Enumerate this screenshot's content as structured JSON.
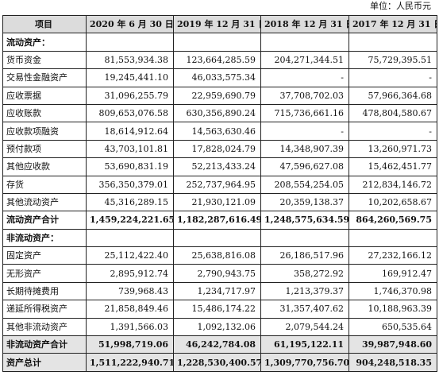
{
  "unit_label": "单位：人民币元",
  "headers": [
    "项目",
    "2020 年 6 月 30 日",
    "2019 年 12 月 31 日",
    "2018 年 12 月 31 日",
    "2017 年 12 月 31 日"
  ],
  "rows": [
    {
      "kind": "section",
      "label": "流动资产：",
      "values": [
        "",
        "",
        "",
        ""
      ]
    },
    {
      "kind": "item",
      "label": "货币资金",
      "values": [
        "81,553,934.38",
        "123,664,285.59",
        "204,271,344.51",
        "75,729,395.51"
      ]
    },
    {
      "kind": "item",
      "label": "交易性金融资产",
      "values": [
        "19,245,441.10",
        "46,033,575.34",
        "-",
        "-"
      ]
    },
    {
      "kind": "item",
      "label": "应收票据",
      "values": [
        "31,096,255.79",
        "22,959,690.79",
        "37,708,702.03",
        "57,966,364.68"
      ]
    },
    {
      "kind": "item",
      "label": "应收账款",
      "values": [
        "809,653,076.58",
        "630,356,890.24",
        "715,736,661.16",
        "478,804,580.67"
      ]
    },
    {
      "kind": "item",
      "label": "应收款项融资",
      "values": [
        "18,614,912.64",
        "14,563,630.46",
        "-",
        "-"
      ]
    },
    {
      "kind": "item",
      "label": "预付款项",
      "values": [
        "43,703,101.81",
        "17,828,024.79",
        "14,348,907.39",
        "13,260,971.73"
      ]
    },
    {
      "kind": "item",
      "label": "其他应收款",
      "values": [
        "53,690,831.19",
        "52,213,433.24",
        "47,596,627.08",
        "15,462,451.77"
      ]
    },
    {
      "kind": "item",
      "label": "存货",
      "values": [
        "356,350,379.01",
        "252,737,964.95",
        "208,554,254.05",
        "212,834,146.72"
      ]
    },
    {
      "kind": "item",
      "label": "其他流动资产",
      "values": [
        "45,316,289.15",
        "21,930,121.09",
        "20,359,138.37",
        "10,202,658.67"
      ]
    },
    {
      "kind": "total",
      "label": "流动资产合计",
      "values": [
        "1,459,224,221.65",
        "1,182,287,616.49",
        "1,248,575,634.59",
        "864,260,569.75"
      ]
    },
    {
      "kind": "section",
      "label": "非流动资产：",
      "values": [
        "",
        "",
        "",
        ""
      ]
    },
    {
      "kind": "item",
      "label": "固定资产",
      "values": [
        "25,112,422.40",
        "25,638,816.08",
        "26,186,517.96",
        "27,232,166.12"
      ]
    },
    {
      "kind": "item",
      "label": "无形资产",
      "values": [
        "2,895,912.74",
        "2,790,943.75",
        "358,272.92",
        "169,912.47"
      ]
    },
    {
      "kind": "item",
      "label": "长期待摊费用",
      "values": [
        "739,968.43",
        "1,234,717.97",
        "1,213,379.37",
        "1,746,370.98"
      ]
    },
    {
      "kind": "item",
      "label": "递延所得税资产",
      "values": [
        "21,858,849.46",
        "15,486,174.22",
        "31,357,407.62",
        "10,188,963.39"
      ]
    },
    {
      "kind": "item",
      "label": "其他非流动资产",
      "values": [
        "1,391,566.03",
        "1,092,132.06",
        "2,079,544.24",
        "650,535.64"
      ]
    },
    {
      "kind": "total-shade",
      "label": "非流动资产合计",
      "values": [
        "51,998,719.06",
        "46,242,784.08",
        "61,195,122.11",
        "39,987,948.60"
      ]
    },
    {
      "kind": "total-shade",
      "label": "资产总计",
      "values": [
        "1,511,222,940.71",
        "1,228,530,400.57",
        "1,309,770,756.70",
        "904,248,518.35"
      ]
    }
  ]
}
